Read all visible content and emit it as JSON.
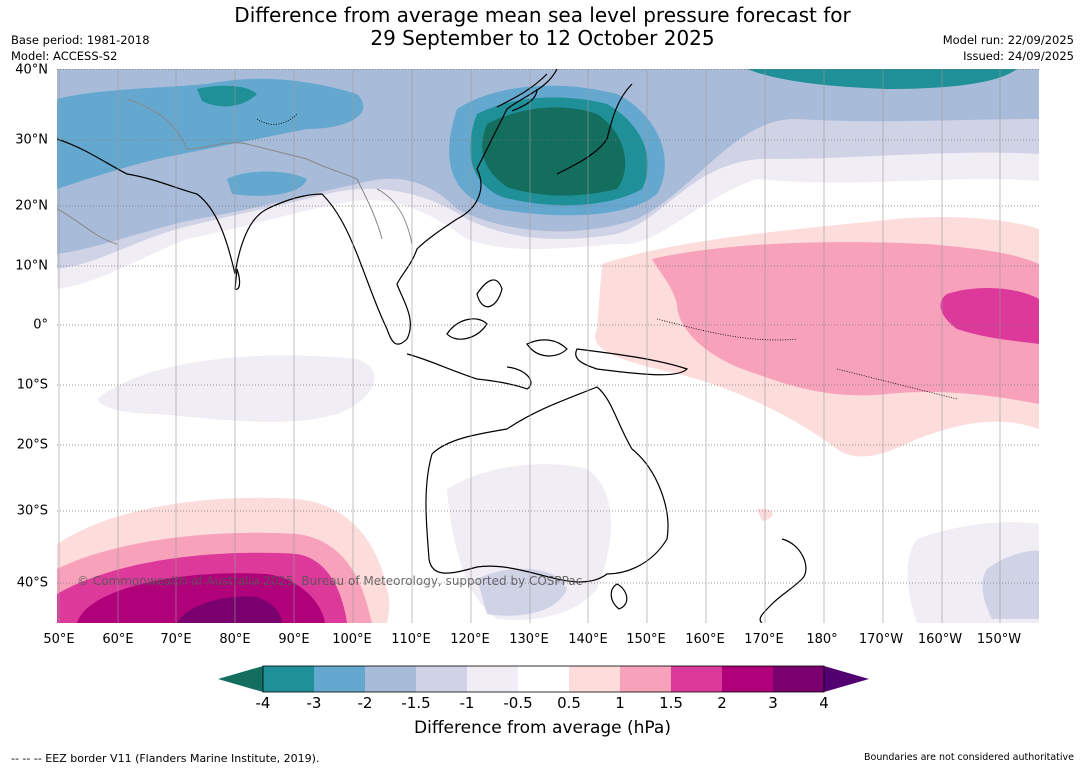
{
  "title": {
    "line1": "Difference from average mean sea level pressure forecast for",
    "line2": "29 September to 12 October 2025"
  },
  "meta": {
    "base_period": "Base period: 1981-2018",
    "model": "Model: ACCESS-S2",
    "model_run": "Model run: 22/09/2025",
    "issued": "Issued: 24/09/2025"
  },
  "map": {
    "lat_labels": [
      "40°N",
      "30°N",
      "20°N",
      "10°N",
      "0°",
      "10°S",
      "20°S",
      "30°S",
      "40°S"
    ],
    "lon_labels": [
      "50°E",
      "60°E",
      "70°E",
      "80°E",
      "90°E",
      "100°E",
      "110°E",
      "120°E",
      "130°E",
      "140°E",
      "150°E",
      "160°E",
      "170°E",
      "180°",
      "170°W",
      "160°W",
      "150°W"
    ],
    "copyright": "© Commonwealth of Australia 2025, Bureau of Meteorology, supported by COSPPac"
  },
  "colorbar": {
    "ticks": [
      "-4",
      "-3",
      "-2",
      "-1.5",
      "-1",
      "-0.5",
      "0.5",
      "1",
      "1.5",
      "2",
      "3",
      "4"
    ],
    "colors": [
      "#136e5e",
      "#1f9097",
      "#64a8d0",
      "#a8bbd9",
      "#d0d2e6",
      "#f1edf5",
      "#ffffff",
      "#fddcdc",
      "#f7a1ba",
      "#dc399b",
      "#b0007a",
      "#7b006f",
      "#520070"
    ],
    "title": "Difference from average (hPa)"
  },
  "footer": {
    "legend": "--  --  -- EEZ border V11 (Flanders Marine Institute, 2019).",
    "note": "Boundaries are not considered authoritative"
  }
}
